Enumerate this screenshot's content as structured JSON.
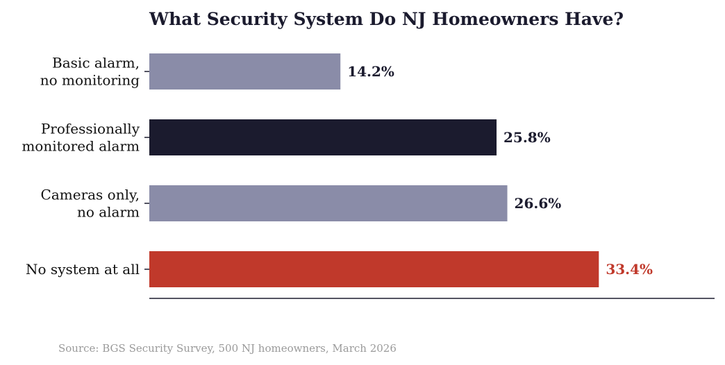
{
  "chart_data": {
    "type": "bar",
    "orientation": "horizontal",
    "title": "What Security System Do NJ Homeowners Have?",
    "categories": [
      [
        "Basic alarm,",
        "no monitoring"
      ],
      [
        "Professionally",
        "monitored alarm"
      ],
      [
        "Cameras only,",
        "no alarm"
      ],
      [
        "No system at all"
      ]
    ],
    "values": [
      14.2,
      25.8,
      26.6,
      33.4
    ],
    "value_labels": [
      "14.2%",
      "25.8%",
      "26.6%",
      "33.4%"
    ],
    "bar_colors": [
      "#8a8ca8",
      "#1b1b2e",
      "#8a8ca8",
      "#c0392b"
    ],
    "label_colors": [
      "#1b1b2e",
      "#1b1b2e",
      "#1b1b2e",
      "#c0392b"
    ],
    "xlim": [
      0,
      42
    ],
    "xlabel": "",
    "ylabel": "",
    "grid": false
  },
  "source": "Source: BGS Security Survey, 500 NJ homeowners, March 2026",
  "colors": {
    "title": "#1b1b2e",
    "axis": "#1b1b2e",
    "source": "#9a9a9a"
  }
}
